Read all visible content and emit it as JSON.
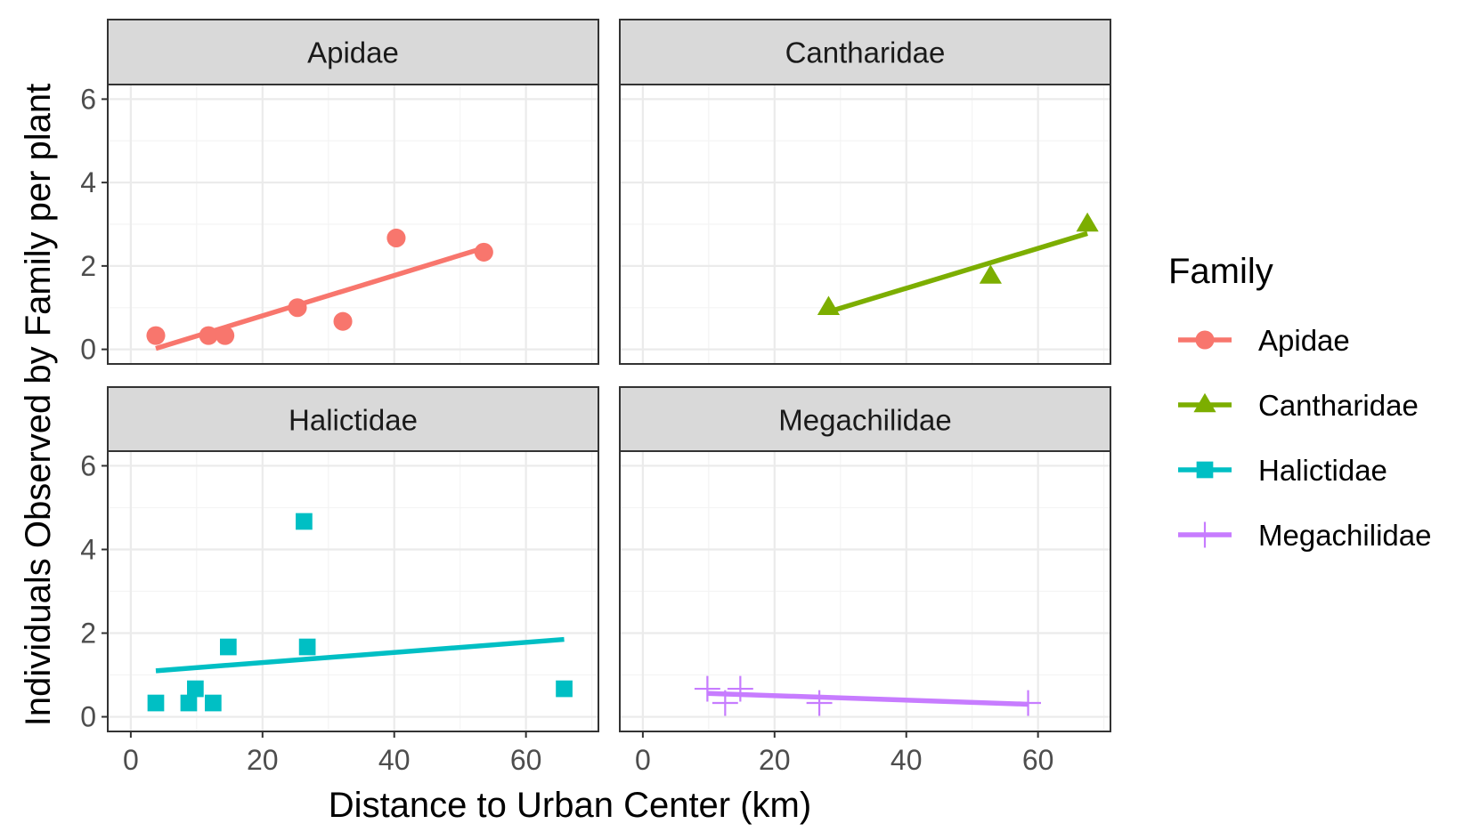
{
  "chart_data": {
    "type": "scatter",
    "xlabel": "Distance to Urban Center (km)",
    "ylabel": "Individuals Observed by Family per plant",
    "xlim": [
      -3.5,
      71
    ],
    "ylim": [
      -0.35,
      6.35
    ],
    "x_ticks": [
      0,
      20,
      40,
      60
    ],
    "y_ticks": [
      0,
      2,
      4,
      6
    ],
    "grid": true,
    "legend": {
      "title": "Family",
      "position": "right"
    },
    "facets": [
      "Apidae",
      "Cantharidae",
      "Halictidae",
      "Megachilidae"
    ],
    "series": [
      {
        "name": "Apidae",
        "color": "#F8766D",
        "shape": "circle",
        "points": [
          [
            3.8,
            0.33
          ],
          [
            11.8,
            0.33
          ],
          [
            14.3,
            0.33
          ],
          [
            25.3,
            1.0
          ],
          [
            32.2,
            0.67
          ],
          [
            40.3,
            2.67
          ],
          [
            53.6,
            2.33
          ]
        ],
        "trend": [
          [
            3.8,
            0.02
          ],
          [
            53.6,
            2.43
          ]
        ]
      },
      {
        "name": "Cantharidae",
        "color": "#7CAE00",
        "shape": "triangle",
        "points": [
          [
            28.2,
            1.0
          ],
          [
            52.8,
            1.75
          ],
          [
            67.5,
            3.0
          ]
        ],
        "trend": [
          [
            28.2,
            0.9
          ],
          [
            67.5,
            2.78
          ]
        ]
      },
      {
        "name": "Halictidae",
        "color": "#00BFC4",
        "shape": "square",
        "points": [
          [
            3.8,
            0.33
          ],
          [
            8.8,
            0.33
          ],
          [
            9.8,
            0.67
          ],
          [
            12.5,
            0.33
          ],
          [
            14.8,
            1.67
          ],
          [
            26.3,
            4.67
          ],
          [
            26.8,
            1.67
          ],
          [
            65.8,
            0.67
          ]
        ],
        "trend": [
          [
            3.8,
            1.1
          ],
          [
            65.8,
            1.85
          ]
        ]
      },
      {
        "name": "Megachilidae",
        "color": "#C77CFF",
        "shape": "plus",
        "points": [
          [
            9.8,
            0.67
          ],
          [
            12.5,
            0.33
          ],
          [
            14.8,
            0.67
          ],
          [
            26.8,
            0.33
          ],
          [
            58.5,
            0.33
          ]
        ],
        "trend": [
          [
            9.8,
            0.56
          ],
          [
            58.5,
            0.3
          ]
        ]
      }
    ]
  }
}
